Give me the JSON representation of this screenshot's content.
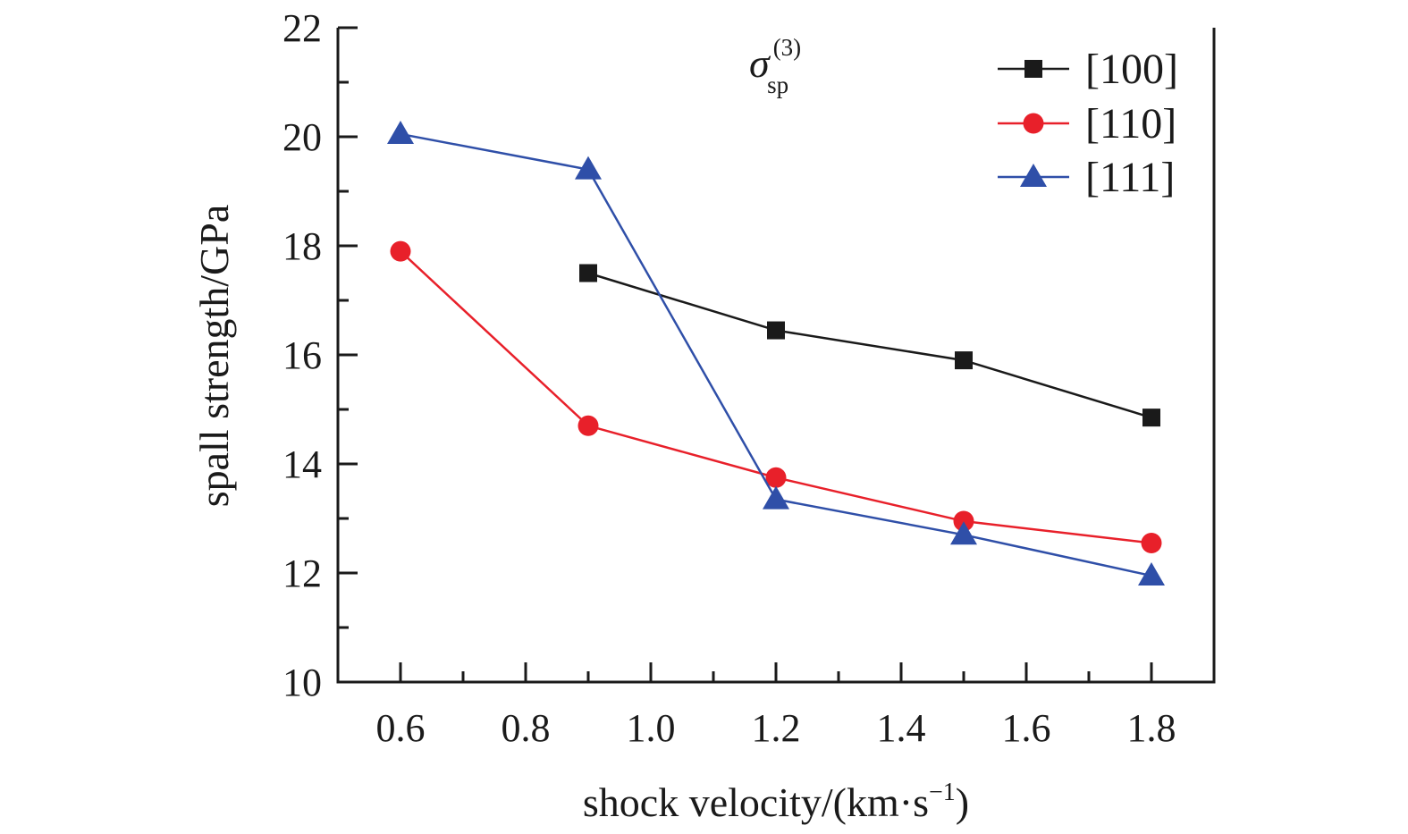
{
  "chart_data": {
    "type": "line",
    "title": "",
    "annotation": {
      "symbol": "σ",
      "sup": "(3)",
      "sub": "sp"
    },
    "xlabel": "shock velocity/(km·s",
    "xlabel_sup": "−1",
    "xlabel_end": ")",
    "ylabel": "spall strength/GPa",
    "xlim": [
      0.5,
      1.9
    ],
    "ylim": [
      10,
      22
    ],
    "xticks": [
      "0.6",
      "0.8",
      "1.0",
      "1.2",
      "1.4",
      "1.6",
      "1.8"
    ],
    "yticks": [
      "10",
      "12",
      "14",
      "16",
      "18",
      "20",
      "22"
    ],
    "legend_position": "top-right",
    "grid": false,
    "series": [
      {
        "name": "[100]",
        "color": "#1a1a1a",
        "marker": "square",
        "x": [
          0.9,
          1.2,
          1.5,
          1.8
        ],
        "y": [
          17.5,
          16.45,
          15.9,
          14.85
        ]
      },
      {
        "name": "[110]",
        "color": "#e8202a",
        "marker": "circle",
        "x": [
          0.6,
          0.9,
          1.2,
          1.5,
          1.8
        ],
        "y": [
          17.9,
          14.7,
          13.75,
          12.95,
          12.55
        ]
      },
      {
        "name": "[111]",
        "color": "#2f4fa8",
        "marker": "triangle",
        "x": [
          0.6,
          0.9,
          1.2,
          1.5,
          1.8
        ],
        "y": [
          20.05,
          19.4,
          13.35,
          12.7,
          11.95
        ]
      }
    ]
  }
}
